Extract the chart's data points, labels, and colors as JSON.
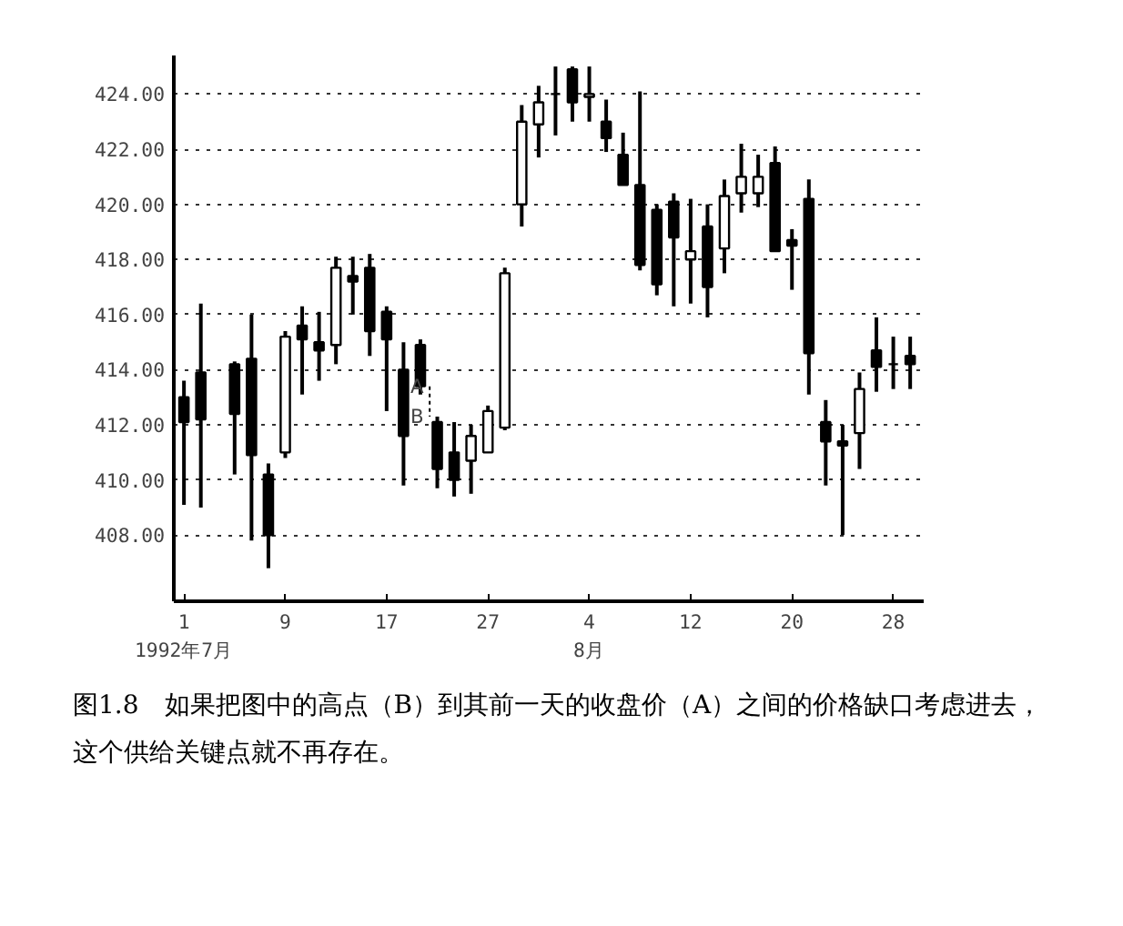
{
  "chart_data": {
    "type": "candlestick",
    "categories": [
      "1\n1992年7月",
      null,
      null,
      null,
      null,
      null,
      "9",
      null,
      null,
      null,
      null,
      null,
      "17",
      null,
      null,
      null,
      null,
      null,
      "27",
      null,
      null,
      null,
      null,
      null,
      "4\n8月",
      null,
      null,
      null,
      null,
      null,
      "12",
      null,
      null,
      null,
      null,
      null,
      "20",
      null,
      null,
      null,
      null,
      null,
      "28",
      null
    ],
    "ohlc": [
      [
        413.0,
        413.6,
        409.1,
        412.1
      ],
      [
        413.9,
        416.4,
        409.0,
        412.2
      ],
      null,
      [
        414.2,
        414.3,
        410.2,
        412.4
      ],
      [
        414.4,
        416.0,
        407.8,
        410.9
      ],
      [
        410.2,
        410.6,
        406.8,
        408.0
      ],
      [
        411.0,
        415.4,
        410.8,
        415.2
      ],
      [
        415.6,
        416.3,
        413.1,
        415.1
      ],
      [
        415.0,
        416.1,
        413.6,
        414.7
      ],
      [
        414.9,
        418.1,
        414.2,
        417.7
      ],
      [
        417.4,
        418.1,
        416.0,
        417.2
      ],
      [
        417.7,
        418.2,
        414.5,
        415.4
      ],
      [
        416.1,
        416.3,
        412.5,
        415.1
      ],
      [
        414.0,
        415.0,
        409.8,
        411.6
      ],
      [
        414.9,
        415.1,
        413.1,
        413.4
      ],
      [
        412.1,
        412.3,
        409.7,
        410.4
      ],
      [
        411.0,
        412.1,
        409.4,
        410.0
      ],
      [
        410.7,
        412.0,
        409.5,
        411.6
      ],
      [
        411.0,
        412.7,
        411.0,
        412.5
      ],
      [
        411.9,
        417.7,
        411.8,
        417.5
      ],
      [
        420.0,
        423.6,
        419.2,
        423.0
      ],
      [
        422.9,
        424.3,
        421.7,
        423.7
      ],
      [
        424.0,
        425.0,
        422.5,
        424.0
      ],
      [
        424.9,
        425.0,
        423.0,
        423.7
      ],
      [
        423.9,
        425.0,
        423.0,
        424.0
      ],
      [
        423.0,
        423.8,
        421.9,
        422.4
      ],
      [
        421.8,
        422.6,
        420.7,
        420.7
      ],
      [
        420.7,
        424.1,
        417.6,
        417.8
      ],
      [
        419.8,
        420.0,
        416.7,
        417.1
      ],
      [
        420.1,
        420.4,
        416.3,
        418.8
      ],
      [
        418.0,
        420.2,
        416.4,
        418.3
      ],
      [
        419.2,
        420.0,
        415.9,
        417.0
      ],
      [
        418.4,
        420.9,
        417.5,
        420.3
      ],
      [
        420.4,
        422.2,
        419.7,
        421.0
      ],
      [
        420.4,
        421.8,
        419.9,
        421.0
      ],
      [
        421.5,
        422.1,
        418.3,
        418.3
      ],
      [
        418.7,
        419.1,
        416.9,
        418.5
      ],
      [
        420.2,
        420.9,
        413.1,
        414.6
      ],
      [
        412.1,
        412.9,
        409.8,
        411.4
      ],
      [
        411.4,
        412.0,
        408.0,
        411.25
      ],
      [
        411.7,
        413.9,
        410.4,
        413.3
      ],
      [
        414.7,
        415.9,
        413.2,
        414.1
      ],
      [
        414.2,
        415.2,
        413.3,
        414.2
      ],
      [
        414.5,
        415.2,
        413.3,
        414.2
      ]
    ],
    "ylim": [
      405.6,
      425.4
    ],
    "yticks": [
      {
        "value": 408,
        "label": "408.00"
      },
      {
        "value": 410,
        "label": "410.00"
      },
      {
        "value": 412,
        "label": "412.00"
      },
      {
        "value": 414,
        "label": "414.00"
      },
      {
        "value": 416,
        "label": "416.00"
      },
      {
        "value": 418,
        "label": "418.00"
      },
      {
        "value": 420,
        "label": "420.00"
      },
      {
        "value": 422,
        "label": "422.00"
      },
      {
        "value": 424,
        "label": "424.00"
      }
    ],
    "grid": "y",
    "color": "#000000",
    "annotations": [
      {
        "text": "A",
        "y": 413.4
      },
      "B",
      "图1.8　如果把图中的高点（B）到其前一天的收盘价（A）之间的价格缺口考虑进去，这个供给关键点就不再存在。"
    ]
  }
}
